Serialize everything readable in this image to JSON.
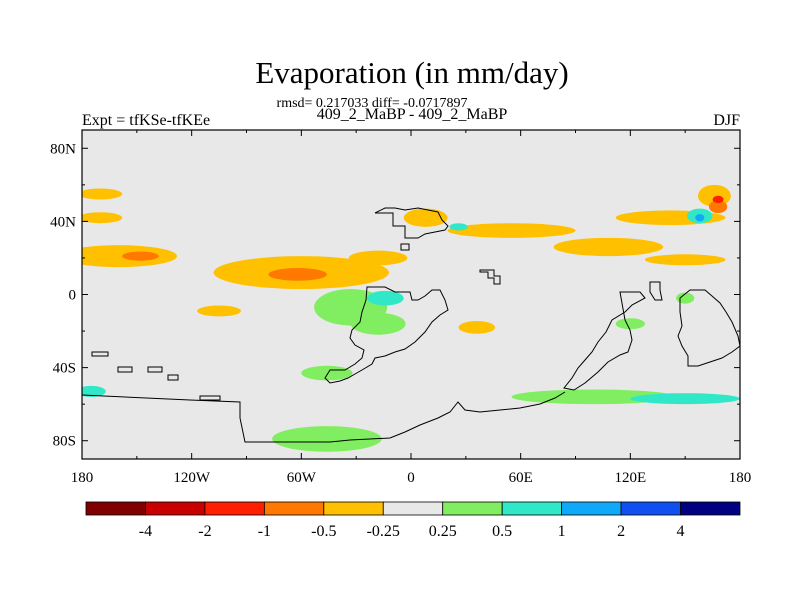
{
  "chart_data": {
    "type": "heatmap",
    "title": "Evaporation (in mm/day)",
    "stats_line": "rmsd= 0.217033 diff= -0.0717897",
    "subtitle": "409_2_MaBP - 409_2_MaBP",
    "left_label": "Expt = tfKSe-tfKEe",
    "right_label": "DJF",
    "x_axis": {
      "range": [
        -180,
        180
      ],
      "ticks": [
        -180,
        -120,
        -60,
        0,
        60,
        120,
        180
      ],
      "tick_labels": [
        "180",
        "120W",
        "60W",
        "0",
        "60E",
        "120E",
        "180"
      ]
    },
    "y_axis": {
      "range": [
        -90,
        90
      ],
      "ticks": [
        80,
        40,
        0,
        -40,
        -80
      ],
      "tick_labels": [
        "80N",
        "40N",
        "0",
        "40S",
        "80S"
      ]
    },
    "colorbar": {
      "colors": [
        "#800000",
        "#c80000",
        "#ff2000",
        "#ff7800",
        "#ffc000",
        "#e8e8e8",
        "#80ee60",
        "#30e8c8",
        "#10a8f8",
        "#1050f0",
        "#000080"
      ],
      "labels": [
        "-4",
        "-2",
        "-1",
        "-0.5",
        "-0.25",
        "0.25",
        "0.5",
        "1",
        "2",
        "4"
      ]
    },
    "field_anomalies": [
      {
        "lon": -160,
        "lat": 21,
        "rlon": 32,
        "rlat": 6,
        "level": 4
      },
      {
        "lon": -148,
        "lat": 21,
        "rlon": 10,
        "rlat": 2.5,
        "level": 3
      },
      {
        "lon": -60,
        "lat": 12,
        "rlon": 48,
        "rlat": 9,
        "level": 4
      },
      {
        "lon": -62,
        "lat": 11,
        "rlon": 16,
        "rlat": 3.5,
        "level": 3
      },
      {
        "lon": -18,
        "lat": 20,
        "rlon": 16,
        "rlat": 4,
        "level": 4
      },
      {
        "lon": -170,
        "lat": 55,
        "rlon": 12,
        "rlat": 3,
        "level": 4
      },
      {
        "lon": -170,
        "lat": 42,
        "rlon": 12,
        "rlat": 3,
        "level": 4
      },
      {
        "lon": -105,
        "lat": -9,
        "rlon": 12,
        "rlat": 3,
        "level": 4
      },
      {
        "lon": -45,
        "lat": -6,
        "rlon": 8,
        "rlat": 2.5,
        "level": 4
      },
      {
        "lon": 8,
        "lat": 42,
        "rlon": 12,
        "rlat": 5,
        "level": 4
      },
      {
        "lon": 55,
        "lat": 35,
        "rlon": 35,
        "rlat": 4,
        "level": 4
      },
      {
        "lon": 142,
        "lat": 42,
        "rlon": 30,
        "rlat": 4,
        "level": 4
      },
      {
        "lon": 108,
        "lat": 26,
        "rlon": 30,
        "rlat": 5,
        "level": 4
      },
      {
        "lon": 150,
        "lat": 19,
        "rlon": 22,
        "rlat": 3,
        "level": 4
      },
      {
        "lon": 166,
        "lat": 54,
        "rlon": 9,
        "rlat": 6,
        "level": 4
      },
      {
        "lon": 168,
        "lat": 48,
        "rlon": 5,
        "rlat": 3.5,
        "level": 3
      },
      {
        "lon": 168,
        "lat": 52,
        "rlon": 3,
        "rlat": 2,
        "level": 2
      },
      {
        "lon": 158,
        "lat": 43,
        "rlon": 7,
        "rlat": 4,
        "level": 7
      },
      {
        "lon": 158,
        "lat": 42,
        "rlon": 2.5,
        "rlat": 2,
        "level": 8
      },
      {
        "lon": 36,
        "lat": -18,
        "rlon": 10,
        "rlat": 3.5,
        "level": 4
      },
      {
        "lon": 26,
        "lat": 37,
        "rlon": 5,
        "rlat": 2,
        "level": 7
      },
      {
        "lon": -33,
        "lat": -7,
        "rlon": 20,
        "rlat": 10,
        "level": 6
      },
      {
        "lon": -18,
        "lat": -16,
        "rlon": 15,
        "rlat": 6,
        "level": 6
      },
      {
        "lon": -14,
        "lat": -2,
        "rlon": 10,
        "rlat": 4,
        "level": 7
      },
      {
        "lon": -46,
        "lat": -43,
        "rlon": 14,
        "rlat": 4,
        "level": 6
      },
      {
        "lon": -46,
        "lat": -79,
        "rlon": 30,
        "rlat": 7,
        "level": 6
      },
      {
        "lon": 100,
        "lat": -56,
        "rlon": 45,
        "rlat": 4,
        "level": 6
      },
      {
        "lon": 150,
        "lat": -57,
        "rlon": 30,
        "rlat": 3,
        "level": 7
      },
      {
        "lon": -175,
        "lat": -53,
        "rlon": 8,
        "rlat": 3,
        "level": 7
      },
      {
        "lon": 120,
        "lat": -16,
        "rlon": 8,
        "rlat": 3,
        "level": 6
      },
      {
        "lon": 150,
        "lat": -2,
        "rlon": 5,
        "rlat": 3,
        "level": 6
      }
    ]
  }
}
